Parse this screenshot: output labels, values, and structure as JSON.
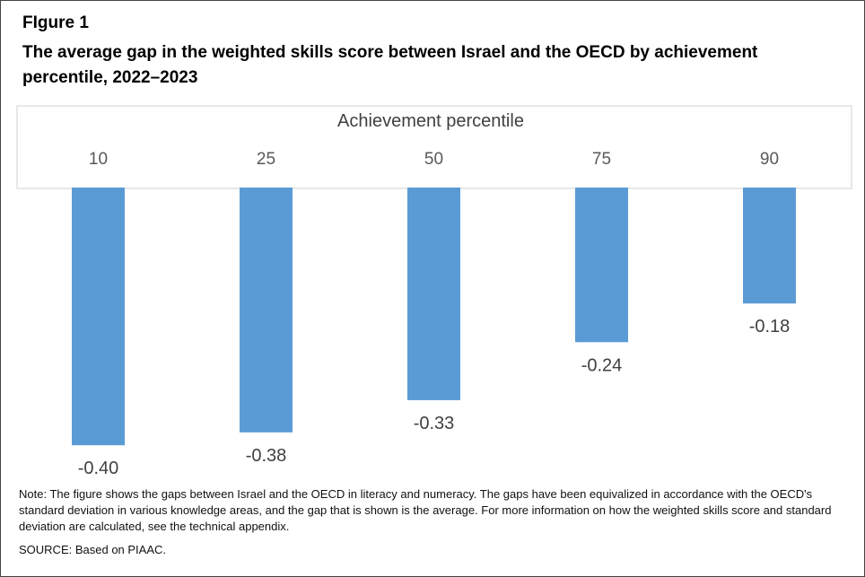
{
  "figure": {
    "label": "FIgure 1",
    "title": "The average gap in the weighted skills score between Israel and the OECD by achievement percentile, 2022–2023"
  },
  "chart_data": {
    "type": "bar",
    "xlabel": "Achievement percentile",
    "ylabel": "",
    "categories": [
      "10",
      "25",
      "50",
      "75",
      "90"
    ],
    "values": [
      -0.4,
      -0.38,
      -0.33,
      -0.24,
      -0.18
    ],
    "data_labels": [
      "-0.40",
      "-0.38",
      "-0.33",
      "-0.24",
      "-0.18"
    ],
    "ylim": [
      -0.4,
      0
    ],
    "x_axis_position": "top",
    "bar_color": "#5b9bd5",
    "grid": false,
    "legend": "none"
  },
  "footer": {
    "note": "Note: The figure shows the gaps between Israel and the OECD in literacy and numeracy.  The gaps have been equivalized in accordance with the OECD's standard deviation in various knowledge areas, and the gap that is shown is the average.  For more information on how the weighted skills score and standard deviation are calculated, see the technical appendix.",
    "source": "SOURCE: Based on PIAAC."
  }
}
